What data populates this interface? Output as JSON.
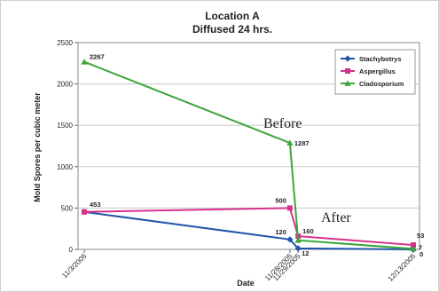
{
  "chart_data": {
    "type": "line",
    "title": "Location A",
    "subtitle": "Diffused 24 hrs.",
    "xlabel": "Date",
    "ylabel": "Mold Spores per cubic meter",
    "x": [
      "11/3/2005",
      "11/28/2005",
      "11/29/2005",
      "12/13/2005"
    ],
    "x_days": [
      0,
      25,
      26,
      40
    ],
    "ylim": [
      0,
      2500
    ],
    "yticks": [
      0,
      500,
      1000,
      1500,
      2000,
      2500
    ],
    "grid": true,
    "legend_position": "top-right",
    "series": [
      {
        "name": "Stachybotrys",
        "color": "#2055a8",
        "marker": "diamond",
        "values": [
          453,
          120,
          12,
          0
        ],
        "labels": [
          "453",
          "120",
          "12",
          "0"
        ]
      },
      {
        "name": "Aspergillus",
        "color": "#d6308a",
        "marker": "square",
        "values": [
          453,
          500,
          160,
          53
        ],
        "labels": [
          "",
          "500",
          "160",
          "53"
        ]
      },
      {
        "name": "Cladosporium",
        "color": "#3aa63a",
        "marker": "triangle",
        "values": [
          2267,
          1287,
          110,
          7
        ],
        "labels": [
          "2267",
          "1287",
          "",
          "7"
        ]
      }
    ],
    "annotations": [
      "Before",
      "After"
    ]
  }
}
